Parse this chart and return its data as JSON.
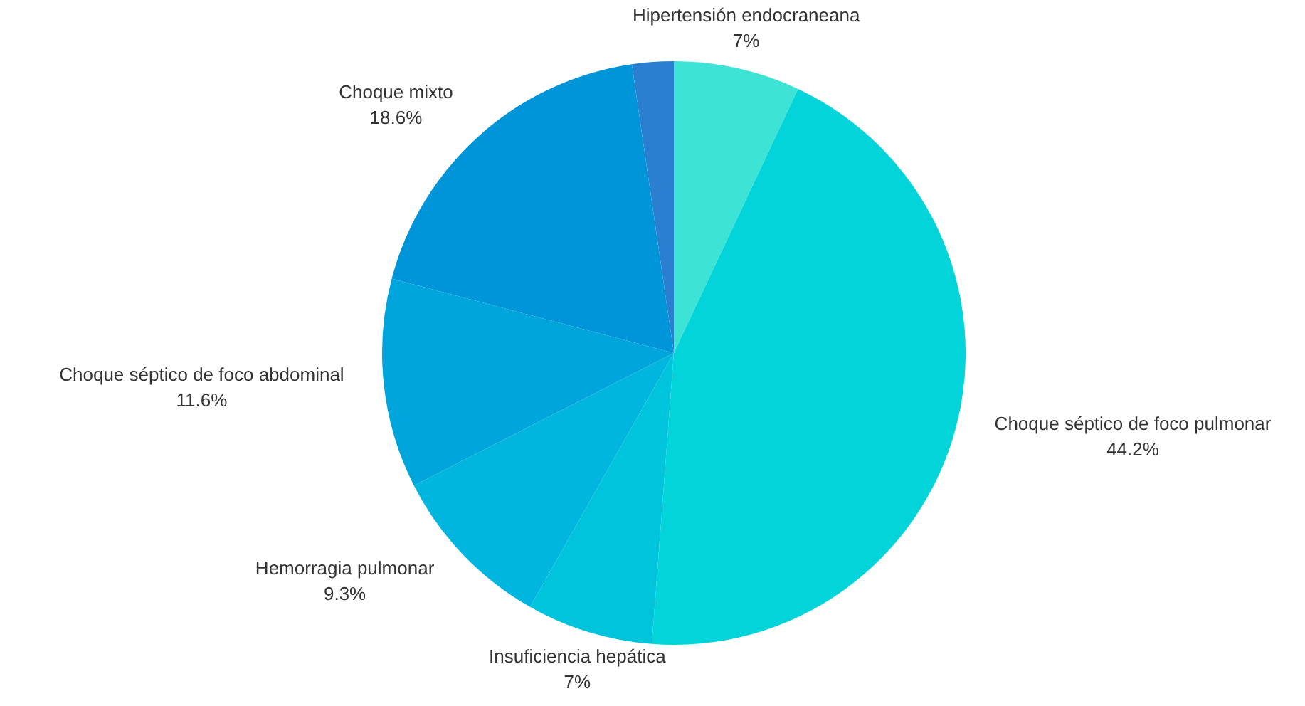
{
  "chart_data": {
    "type": "pie",
    "categories": [
      "Hipertensión endocraneana",
      "Choque séptico de foco pulmonar",
      "Insuficiencia hepática",
      "Hemorragia pulmonar",
      "Choque séptico de foco abdominal",
      "Choque mixto",
      null
    ],
    "values": [
      7,
      44.2,
      7,
      9.3,
      11.6,
      18.6,
      2.3
    ],
    "value_labels": [
      "7%",
      "44.2%",
      "7%",
      "9.3%",
      "11.6%",
      "18.6%",
      null
    ],
    "colors": [
      "#3de3d4",
      "#02d4d9",
      "#00c3dc",
      "#00b6df",
      "#00a5dc",
      "#0094d8",
      "#2a7fd0"
    ],
    "legend": false
  }
}
